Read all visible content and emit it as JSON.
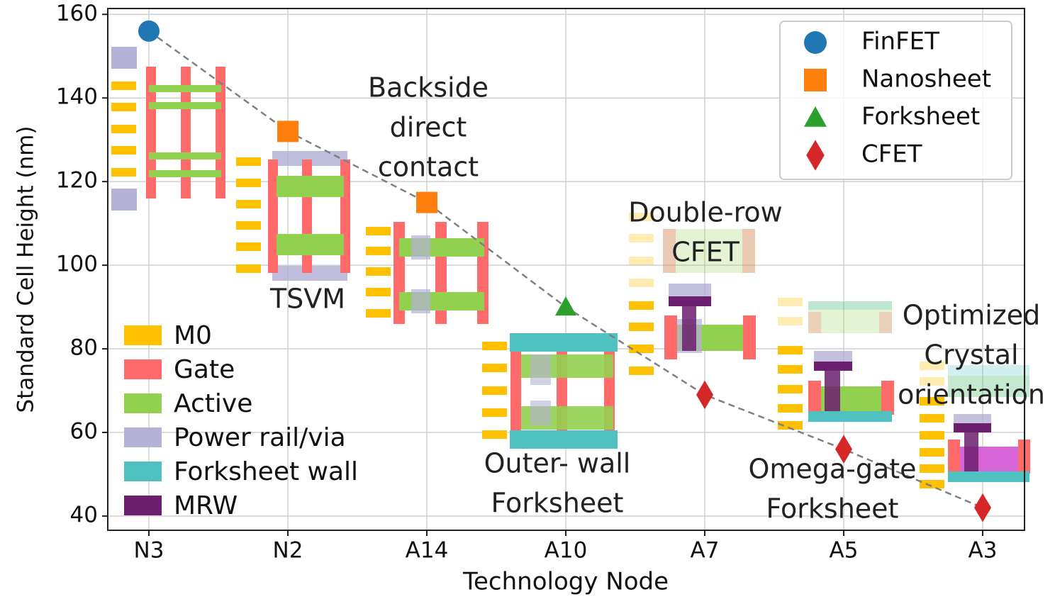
{
  "chart_data": {
    "type": "scatter",
    "x_label": "Technology Node",
    "y_label": "Standard Cell Height (nm)",
    "categories": [
      "N3",
      "N2",
      "A14",
      "A10",
      "A7",
      "A5",
      "A3"
    ],
    "ylim": [
      36.6,
      161.4
    ],
    "yticks": [
      40,
      60,
      80,
      100,
      120,
      140,
      160
    ],
    "grid": true,
    "legend": "upper right",
    "connector": {
      "style": "dashed",
      "color": "#808080"
    },
    "series": [
      {
        "name": "FinFET",
        "marker": "circle",
        "color": "#1f77b4",
        "values": [
          156,
          null,
          null,
          null,
          null,
          null,
          null
        ]
      },
      {
        "name": "Nanosheet",
        "marker": "square",
        "color": "#ff7f0e",
        "values": [
          null,
          132,
          115,
          null,
          null,
          null,
          null
        ]
      },
      {
        "name": "Forksheet",
        "marker": "triangle",
        "color": "#2ca02c",
        "values": [
          null,
          null,
          null,
          90,
          null,
          null,
          null
        ]
      },
      {
        "name": "CFET",
        "marker": "diamond",
        "color": "#d62728",
        "values": [
          null,
          null,
          null,
          null,
          69,
          56,
          42
        ]
      }
    ],
    "layer_legend": [
      {
        "name": "M0",
        "color": "#ffc000"
      },
      {
        "name": "Gate",
        "color": "#ff6b6b"
      },
      {
        "name": "Active",
        "color": "#92d050"
      },
      {
        "name": "Power rail/via",
        "color": "#b4b2d6"
      },
      {
        "name": "Forksheet wall",
        "color": "#4fc1c1"
      },
      {
        "name": "MRW",
        "color": "#6b1f6e"
      }
    ],
    "annotations": [
      {
        "lines": [
          "Backside",
          "direct",
          "contact"
        ]
      },
      {
        "lines": [
          "TSVM"
        ]
      },
      {
        "lines": [
          "Outer- wall",
          "Forksheet"
        ]
      },
      {
        "lines": [
          "Double-row",
          "CFET"
        ]
      },
      {
        "lines": [
          "Omega-gate",
          "Forksheet"
        ]
      },
      {
        "lines": [
          "Optimized",
          "Crystal",
          "orientation"
        ]
      }
    ]
  }
}
